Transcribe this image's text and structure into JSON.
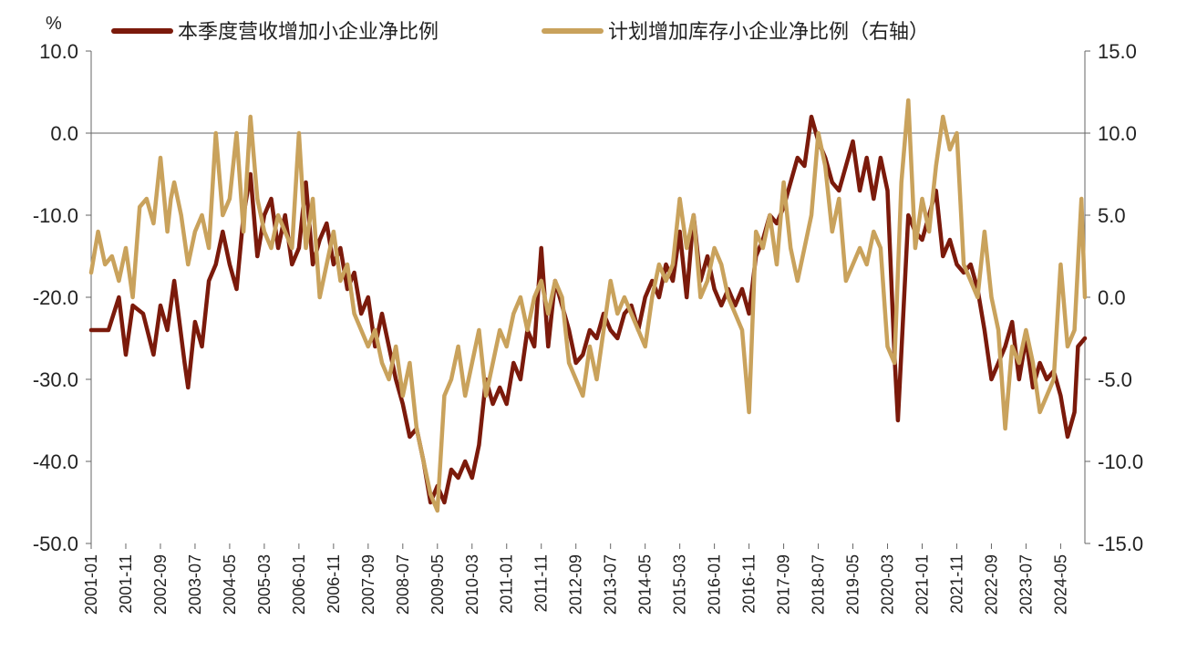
{
  "chart_data": {
    "type": "line",
    "y_unit_label": "%",
    "ylim_left": [
      -50,
      10
    ],
    "yticks_left": [
      "10.0",
      "0.0",
      "-10.0",
      "-20.0",
      "-30.0",
      "-40.0",
      "-50.0"
    ],
    "ylim_right": [
      -15,
      15
    ],
    "yticks_right": [
      "15.0",
      "10.0",
      "5.0",
      "0.0",
      "-5.0",
      "-10.0",
      "-15.0"
    ],
    "x_ticks": [
      "2001-01",
      "2001-11",
      "2002-09",
      "2003-07",
      "2004-05",
      "2005-03",
      "2006-01",
      "2006-11",
      "2007-09",
      "2008-07",
      "2009-05",
      "2010-03",
      "2011-01",
      "2011-11",
      "2012-09",
      "2013-07",
      "2014-05",
      "2015-03",
      "2016-01",
      "2016-11",
      "2017-09",
      "2018-07",
      "2019-05",
      "2020-03",
      "2021-01",
      "2021-11",
      "2022-09",
      "2023-07",
      "2024-05"
    ],
    "legend_position": "top",
    "series": [
      {
        "name": "本季度营收增加小企业净比例",
        "axis": "left",
        "color": "#7B1A0B",
        "points": [
          [
            "2001-01",
            -24
          ],
          [
            "2001-06",
            -24
          ],
          [
            "2001-09",
            -20
          ],
          [
            "2001-11",
            -27
          ],
          [
            "2002-01",
            -21
          ],
          [
            "2002-04",
            -22
          ],
          [
            "2002-07",
            -27
          ],
          [
            "2002-09",
            -21
          ],
          [
            "2002-11",
            -24
          ],
          [
            "2003-01",
            -18
          ],
          [
            "2003-04",
            -28
          ],
          [
            "2003-05",
            -31
          ],
          [
            "2003-07",
            -23
          ],
          [
            "2003-09",
            -26
          ],
          [
            "2003-11",
            -18
          ],
          [
            "2004-01",
            -16
          ],
          [
            "2004-03",
            -12
          ],
          [
            "2004-05",
            -16
          ],
          [
            "2004-07",
            -19
          ],
          [
            "2004-09",
            -10
          ],
          [
            "2004-11",
            -5
          ],
          [
            "2005-01",
            -15
          ],
          [
            "2005-03",
            -10
          ],
          [
            "2005-05",
            -8
          ],
          [
            "2005-07",
            -14
          ],
          [
            "2005-09",
            -10
          ],
          [
            "2005-11",
            -16
          ],
          [
            "2006-01",
            -14
          ],
          [
            "2006-03",
            -6
          ],
          [
            "2006-05",
            -16
          ],
          [
            "2006-07",
            -13
          ],
          [
            "2006-09",
            -11
          ],
          [
            "2006-11",
            -16
          ],
          [
            "2007-01",
            -14
          ],
          [
            "2007-03",
            -19
          ],
          [
            "2007-05",
            -17
          ],
          [
            "2007-07",
            -22
          ],
          [
            "2007-09",
            -20
          ],
          [
            "2007-11",
            -26
          ],
          [
            "2008-01",
            -22
          ],
          [
            "2008-03",
            -26
          ],
          [
            "2008-05",
            -30
          ],
          [
            "2008-07",
            -33
          ],
          [
            "2008-09",
            -37
          ],
          [
            "2008-11",
            -36
          ],
          [
            "2009-01",
            -40
          ],
          [
            "2009-03",
            -45
          ],
          [
            "2009-05",
            -43
          ],
          [
            "2009-07",
            -45
          ],
          [
            "2009-09",
            -41
          ],
          [
            "2009-11",
            -42
          ],
          [
            "2010-01",
            -40
          ],
          [
            "2010-03",
            -42
          ],
          [
            "2010-05",
            -38
          ],
          [
            "2010-07",
            -30
          ],
          [
            "2010-09",
            -33
          ],
          [
            "2010-11",
            -31
          ],
          [
            "2011-01",
            -33
          ],
          [
            "2011-03",
            -28
          ],
          [
            "2011-05",
            -30
          ],
          [
            "2011-07",
            -24
          ],
          [
            "2011-09",
            -26
          ],
          [
            "2011-11",
            -14
          ],
          [
            "2012-01",
            -26
          ],
          [
            "2012-03",
            -18
          ],
          [
            "2012-05",
            -21
          ],
          [
            "2012-07",
            -24
          ],
          [
            "2012-09",
            -28
          ],
          [
            "2012-11",
            -27
          ],
          [
            "2013-01",
            -24
          ],
          [
            "2013-03",
            -25
          ],
          [
            "2013-05",
            -22
          ],
          [
            "2013-07",
            -24
          ],
          [
            "2013-09",
            -25
          ],
          [
            "2013-11",
            -22
          ],
          [
            "2014-01",
            -21
          ],
          [
            "2014-03",
            -24
          ],
          [
            "2014-05",
            -20
          ],
          [
            "2014-07",
            -18
          ],
          [
            "2014-09",
            -20
          ],
          [
            "2014-11",
            -16
          ],
          [
            "2015-01",
            -18
          ],
          [
            "2015-03",
            -12
          ],
          [
            "2015-05",
            -20
          ],
          [
            "2015-07",
            -10
          ],
          [
            "2015-09",
            -18
          ],
          [
            "2015-11",
            -15
          ],
          [
            "2016-01",
            -19
          ],
          [
            "2016-03",
            -21
          ],
          [
            "2016-05",
            -19
          ],
          [
            "2016-07",
            -21
          ],
          [
            "2016-09",
            -19
          ],
          [
            "2016-11",
            -22
          ],
          [
            "2017-01",
            -15
          ],
          [
            "2017-03",
            -13
          ],
          [
            "2017-05",
            -10
          ],
          [
            "2017-07",
            -11
          ],
          [
            "2017-09",
            -9
          ],
          [
            "2017-11",
            -6
          ],
          [
            "2018-01",
            -3
          ],
          [
            "2018-03",
            -4
          ],
          [
            "2018-05",
            2
          ],
          [
            "2018-07",
            -1
          ],
          [
            "2018-09",
            -3
          ],
          [
            "2018-11",
            -6
          ],
          [
            "2019-01",
            -7
          ],
          [
            "2019-03",
            -4
          ],
          [
            "2019-05",
            -1
          ],
          [
            "2019-07",
            -7
          ],
          [
            "2019-09",
            -3
          ],
          [
            "2019-11",
            -8
          ],
          [
            "2020-01",
            -3
          ],
          [
            "2020-03",
            -7
          ],
          [
            "2020-05",
            -27
          ],
          [
            "2020-06",
            -35
          ],
          [
            "2020-09",
            -10
          ],
          [
            "2020-11",
            -12
          ],
          [
            "2021-01",
            -13
          ],
          [
            "2021-03",
            -10
          ],
          [
            "2021-05",
            -7
          ],
          [
            "2021-07",
            -15
          ],
          [
            "2021-09",
            -13
          ],
          [
            "2021-11",
            -16
          ],
          [
            "2022-01",
            -17
          ],
          [
            "2022-03",
            -16
          ],
          [
            "2022-05",
            -19
          ],
          [
            "2022-07",
            -24
          ],
          [
            "2022-09",
            -30
          ],
          [
            "2022-11",
            -28
          ],
          [
            "2023-01",
            -26
          ],
          [
            "2023-03",
            -23
          ],
          [
            "2023-05",
            -30
          ],
          [
            "2023-07",
            -25
          ],
          [
            "2023-09",
            -31
          ],
          [
            "2023-11",
            -28
          ],
          [
            "2024-01",
            -30
          ],
          [
            "2024-03",
            -29
          ],
          [
            "2024-05",
            -32
          ],
          [
            "2024-07",
            -37
          ],
          [
            "2024-09",
            -34
          ],
          [
            "2024-10",
            -26
          ],
          [
            "2024-12",
            -25
          ]
        ]
      },
      {
        "name": "计划增加库存小企业净比例（右轴）",
        "axis": "right",
        "color": "#C9A25C",
        "points": [
          [
            "2001-01",
            1.5
          ],
          [
            "2001-03",
            4
          ],
          [
            "2001-05",
            2
          ],
          [
            "2001-07",
            2.5
          ],
          [
            "2001-09",
            1
          ],
          [
            "2001-11",
            3
          ],
          [
            "2002-01",
            0
          ],
          [
            "2002-03",
            5.5
          ],
          [
            "2002-05",
            6
          ],
          [
            "2002-07",
            4.5
          ],
          [
            "2002-09",
            8.5
          ],
          [
            "2002-11",
            4
          ],
          [
            "2002-12",
            6
          ],
          [
            "2003-01",
            7
          ],
          [
            "2003-03",
            5
          ],
          [
            "2003-05",
            2
          ],
          [
            "2003-07",
            4
          ],
          [
            "2003-09",
            5
          ],
          [
            "2003-11",
            3
          ],
          [
            "2004-01",
            10
          ],
          [
            "2004-03",
            5
          ],
          [
            "2004-05",
            6
          ],
          [
            "2004-07",
            10
          ],
          [
            "2004-09",
            4
          ],
          [
            "2004-11",
            11
          ],
          [
            "2005-01",
            6
          ],
          [
            "2005-03",
            4
          ],
          [
            "2005-05",
            3
          ],
          [
            "2005-07",
            5
          ],
          [
            "2005-09",
            4
          ],
          [
            "2005-11",
            3
          ],
          [
            "2006-01",
            10
          ],
          [
            "2006-03",
            3
          ],
          [
            "2006-05",
            6
          ],
          [
            "2006-07",
            0
          ],
          [
            "2006-09",
            2
          ],
          [
            "2006-11",
            4
          ],
          [
            "2007-01",
            1
          ],
          [
            "2007-03",
            2
          ],
          [
            "2007-05",
            -1
          ],
          [
            "2007-07",
            -2
          ],
          [
            "2007-09",
            -3
          ],
          [
            "2007-11",
            -2
          ],
          [
            "2008-01",
            -4
          ],
          [
            "2008-03",
            -5
          ],
          [
            "2008-05",
            -3
          ],
          [
            "2008-07",
            -6
          ],
          [
            "2008-09",
            -4
          ],
          [
            "2008-11",
            -8
          ],
          [
            "2009-01",
            -10
          ],
          [
            "2009-03",
            -12
          ],
          [
            "2009-05",
            -13
          ],
          [
            "2009-07",
            -6
          ],
          [
            "2009-09",
            -5
          ],
          [
            "2009-11",
            -3
          ],
          [
            "2010-01",
            -6
          ],
          [
            "2010-03",
            -4
          ],
          [
            "2010-05",
            -2
          ],
          [
            "2010-07",
            -6
          ],
          [
            "2010-09",
            -4
          ],
          [
            "2010-11",
            -2
          ],
          [
            "2011-01",
            -3
          ],
          [
            "2011-03",
            -1
          ],
          [
            "2011-05",
            0
          ],
          [
            "2011-07",
            -2
          ],
          [
            "2011-09",
            0
          ],
          [
            "2011-11",
            1
          ],
          [
            "2012-01",
            -1
          ],
          [
            "2012-03",
            1
          ],
          [
            "2012-05",
            0
          ],
          [
            "2012-07",
            -4
          ],
          [
            "2012-09",
            -5
          ],
          [
            "2012-11",
            -6
          ],
          [
            "2013-01",
            -3
          ],
          [
            "2013-03",
            -5
          ],
          [
            "2013-05",
            -2
          ],
          [
            "2013-07",
            1
          ],
          [
            "2013-09",
            -1
          ],
          [
            "2013-11",
            0
          ],
          [
            "2014-01",
            -1
          ],
          [
            "2014-03",
            -2
          ],
          [
            "2014-05",
            -3
          ],
          [
            "2014-07",
            0
          ],
          [
            "2014-09",
            2
          ],
          [
            "2014-11",
            1
          ],
          [
            "2015-01",
            2
          ],
          [
            "2015-03",
            6
          ],
          [
            "2015-05",
            3
          ],
          [
            "2015-07",
            5
          ],
          [
            "2015-09",
            0
          ],
          [
            "2015-11",
            1
          ],
          [
            "2016-01",
            3
          ],
          [
            "2016-03",
            2
          ],
          [
            "2016-05",
            0
          ],
          [
            "2016-07",
            -1
          ],
          [
            "2016-09",
            -2
          ],
          [
            "2016-11",
            -7
          ],
          [
            "2017-01",
            4
          ],
          [
            "2017-03",
            3
          ],
          [
            "2017-05",
            5
          ],
          [
            "2017-07",
            2
          ],
          [
            "2017-09",
            7
          ],
          [
            "2017-11",
            3
          ],
          [
            "2018-01",
            1
          ],
          [
            "2018-03",
            3
          ],
          [
            "2018-05",
            5
          ],
          [
            "2018-07",
            10
          ],
          [
            "2018-09",
            8
          ],
          [
            "2018-11",
            4
          ],
          [
            "2019-01",
            6
          ],
          [
            "2019-03",
            1
          ],
          [
            "2019-05",
            2
          ],
          [
            "2019-07",
            3
          ],
          [
            "2019-09",
            2
          ],
          [
            "2019-11",
            4
          ],
          [
            "2020-01",
            3
          ],
          [
            "2020-03",
            -3
          ],
          [
            "2020-05",
            -4
          ],
          [
            "2020-07",
            7
          ],
          [
            "2020-09",
            12
          ],
          [
            "2020-11",
            3
          ],
          [
            "2021-01",
            6
          ],
          [
            "2021-03",
            4
          ],
          [
            "2021-05",
            8
          ],
          [
            "2021-07",
            11
          ],
          [
            "2021-09",
            9
          ],
          [
            "2021-11",
            10
          ],
          [
            "2022-01",
            2
          ],
          [
            "2022-03",
            1
          ],
          [
            "2022-05",
            0
          ],
          [
            "2022-07",
            4
          ],
          [
            "2022-09",
            0
          ],
          [
            "2022-11",
            -2
          ],
          [
            "2023-01",
            -8
          ],
          [
            "2023-03",
            -3
          ],
          [
            "2023-05",
            -4
          ],
          [
            "2023-07",
            -2
          ],
          [
            "2023-09",
            -4
          ],
          [
            "2023-11",
            -7
          ],
          [
            "2024-01",
            -6
          ],
          [
            "2024-03",
            -5
          ],
          [
            "2024-05",
            2
          ],
          [
            "2024-07",
            -3
          ],
          [
            "2024-09",
            -2
          ],
          [
            "2024-11",
            6
          ],
          [
            "2024-12",
            0
          ]
        ]
      }
    ]
  }
}
